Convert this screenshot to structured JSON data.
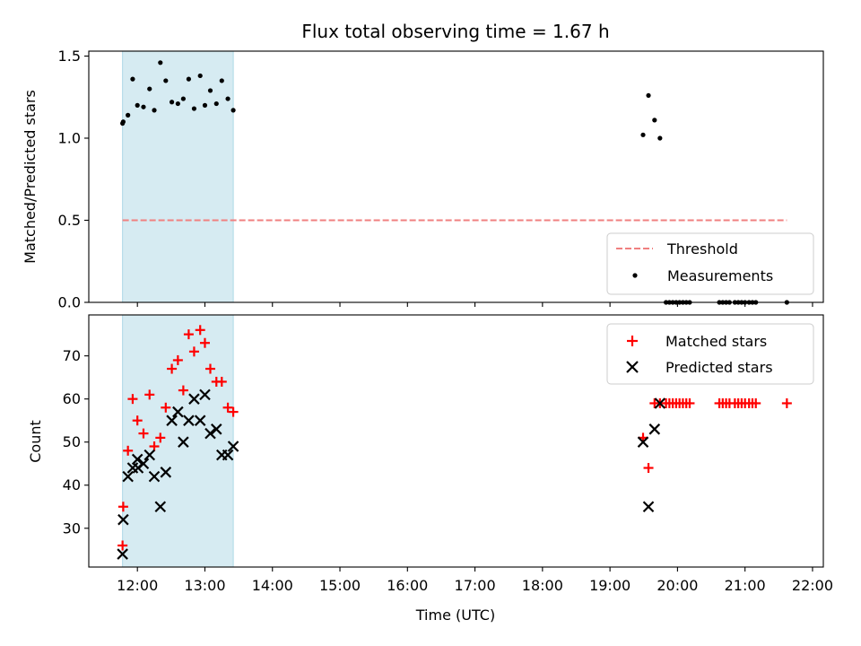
{
  "colors": {
    "span": "#add8e6",
    "threshold": "#f08080",
    "measurements": "#000000",
    "matched": "#ff0000",
    "predicted": "#000000"
  },
  "chart_data": {
    "type": "scatter",
    "title": "Flux total observing time = 1.67 h",
    "xlabel": "Time (UTC)",
    "x_ticks": [
      "12:00",
      "13:00",
      "14:00",
      "15:00",
      "16:00",
      "17:00",
      "18:00",
      "19:00",
      "20:00",
      "21:00",
      "22:00"
    ],
    "xlim": [
      11.28,
      22.16
    ],
    "highlight_span": [
      11.78,
      13.42
    ],
    "panels": [
      {
        "ylabel": "Matched/Predicted stars",
        "ylim": [
          0,
          1.53
        ],
        "y_ticks": [
          "0.0",
          "0.5",
          "1.0",
          "1.5"
        ],
        "legend": {
          "position": "lower right",
          "entries": [
            {
              "label": "Threshold",
              "marker": "dashed-line"
            },
            {
              "label": "Measurements",
              "marker": "dot"
            }
          ]
        },
        "threshold": {
          "value": 0.5,
          "x_range": [
            11.78,
            21.62
          ]
        },
        "series": [
          {
            "name": "Measurements",
            "marker": "dot",
            "points": [
              [
                11.78,
                1.09
              ],
              [
                11.79,
                1.1
              ],
              [
                11.86,
                1.14
              ],
              [
                11.93,
                1.36
              ],
              [
                12.0,
                1.2
              ],
              [
                12.09,
                1.19
              ],
              [
                12.18,
                1.3
              ],
              [
                12.25,
                1.17
              ],
              [
                12.34,
                1.46
              ],
              [
                12.42,
                1.35
              ],
              [
                12.51,
                1.22
              ],
              [
                12.6,
                1.21
              ],
              [
                12.68,
                1.24
              ],
              [
                12.76,
                1.36
              ],
              [
                12.84,
                1.18
              ],
              [
                12.93,
                1.38
              ],
              [
                13.0,
                1.2
              ],
              [
                13.08,
                1.29
              ],
              [
                13.17,
                1.21
              ],
              [
                13.25,
                1.35
              ],
              [
                13.34,
                1.24
              ],
              [
                13.42,
                1.17
              ],
              [
                19.49,
                1.02
              ],
              [
                19.57,
                1.26
              ],
              [
                19.66,
                1.11
              ],
              [
                19.74,
                1.0
              ],
              [
                19.83,
                0.0
              ],
              [
                19.88,
                0.0
              ],
              [
                19.93,
                0.0
              ],
              [
                19.98,
                0.0
              ],
              [
                20.03,
                0.0
              ],
              [
                20.08,
                0.0
              ],
              [
                20.13,
                0.0
              ],
              [
                20.18,
                0.0
              ],
              [
                20.62,
                0.0
              ],
              [
                20.67,
                0.0
              ],
              [
                20.72,
                0.0
              ],
              [
                20.77,
                0.0
              ],
              [
                20.85,
                0.0
              ],
              [
                20.9,
                0.0
              ],
              [
                20.95,
                0.0
              ],
              [
                21.0,
                0.0
              ],
              [
                21.06,
                0.0
              ],
              [
                21.11,
                0.0
              ],
              [
                21.16,
                0.0
              ],
              [
                21.62,
                0.0
              ]
            ]
          }
        ]
      },
      {
        "ylabel": "Count",
        "ylim": [
          21,
          79.5
        ],
        "y_ticks": [
          "30",
          "40",
          "50",
          "60",
          "70"
        ],
        "legend": {
          "position": "upper right",
          "entries": [
            {
              "label": "Matched stars",
              "marker": "plus"
            },
            {
              "label": "Predicted stars",
              "marker": "x"
            }
          ]
        },
        "series": [
          {
            "name": "Matched stars",
            "marker": "plus",
            "points": [
              [
                11.78,
                26
              ],
              [
                11.79,
                35
              ],
              [
                11.86,
                48
              ],
              [
                11.93,
                60
              ],
              [
                12.0,
                55
              ],
              [
                12.09,
                52
              ],
              [
                12.18,
                61
              ],
              [
                12.25,
                49
              ],
              [
                12.34,
                51
              ],
              [
                12.42,
                58
              ],
              [
                12.51,
                67
              ],
              [
                12.6,
                69
              ],
              [
                12.68,
                62
              ],
              [
                12.76,
                75
              ],
              [
                12.84,
                71
              ],
              [
                12.93,
                76
              ],
              [
                13.0,
                73
              ],
              [
                13.08,
                67
              ],
              [
                13.17,
                64
              ],
              [
                13.25,
                64
              ],
              [
                13.34,
                58
              ],
              [
                13.42,
                57
              ],
              [
                19.49,
                51
              ],
              [
                19.57,
                44
              ],
              [
                19.66,
                59
              ],
              [
                19.74,
                59
              ],
              [
                19.83,
                59
              ],
              [
                19.88,
                59
              ],
              [
                19.93,
                59
              ],
              [
                19.98,
                59
              ],
              [
                20.03,
                59
              ],
              [
                20.08,
                59
              ],
              [
                20.13,
                59
              ],
              [
                20.18,
                59
              ],
              [
                20.62,
                59
              ],
              [
                20.67,
                59
              ],
              [
                20.72,
                59
              ],
              [
                20.77,
                59
              ],
              [
                20.85,
                59
              ],
              [
                20.9,
                59
              ],
              [
                20.95,
                59
              ],
              [
                21.0,
                59
              ],
              [
                21.06,
                59
              ],
              [
                21.11,
                59
              ],
              [
                21.16,
                59
              ],
              [
                21.62,
                59
              ]
            ]
          },
          {
            "name": "Predicted stars",
            "marker": "x",
            "points": [
              [
                11.78,
                24
              ],
              [
                11.79,
                32
              ],
              [
                11.86,
                42
              ],
              [
                11.93,
                44
              ],
              [
                12.0,
                46
              ],
              [
                12.01,
                44
              ],
              [
                12.09,
                45
              ],
              [
                12.18,
                47
              ],
              [
                12.25,
                42
              ],
              [
                12.34,
                35
              ],
              [
                12.42,
                43
              ],
              [
                12.51,
                55
              ],
              [
                12.6,
                57
              ],
              [
                12.68,
                50
              ],
              [
                12.76,
                55
              ],
              [
                12.84,
                60
              ],
              [
                12.93,
                55
              ],
              [
                13.0,
                61
              ],
              [
                13.08,
                52
              ],
              [
                13.17,
                53
              ],
              [
                13.25,
                47
              ],
              [
                13.34,
                47
              ],
              [
                13.42,
                49
              ],
              [
                19.49,
                50
              ],
              [
                19.57,
                35
              ],
              [
                19.66,
                53
              ],
              [
                19.74,
                59
              ]
            ]
          }
        ]
      }
    ]
  }
}
